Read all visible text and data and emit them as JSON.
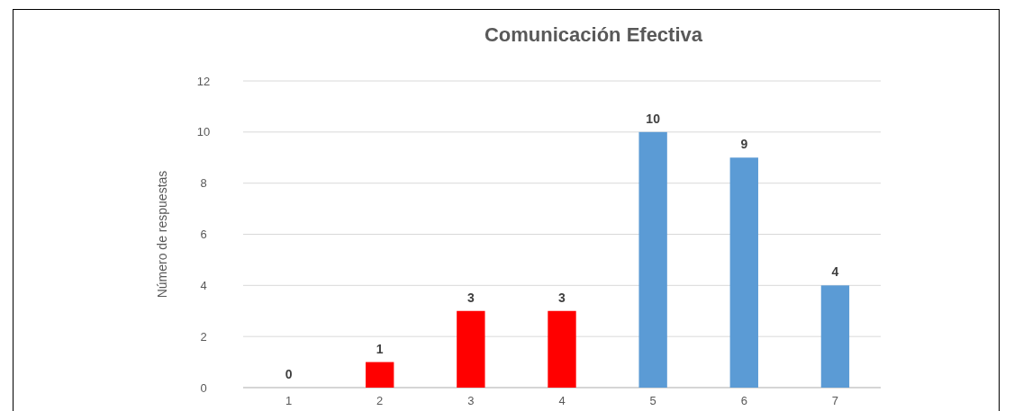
{
  "chart_data": {
    "type": "bar",
    "title": "Comunicación Efectiva",
    "ylabel": "Número de respuestas",
    "categories": [
      "1",
      "2",
      "3",
      "4",
      "5",
      "6",
      "7"
    ],
    "values": [
      0,
      1,
      3,
      3,
      10,
      9,
      4
    ],
    "colors": [
      "#ff0000",
      "#ff0000",
      "#ff0000",
      "#ff0000",
      "#5b9bd5",
      "#5b9bd5",
      "#5b9bd5"
    ],
    "ylim": [
      0,
      12
    ],
    "yticks": [
      0,
      2,
      4,
      6,
      8,
      10,
      12
    ],
    "grid": "y",
    "data_labels": true
  }
}
